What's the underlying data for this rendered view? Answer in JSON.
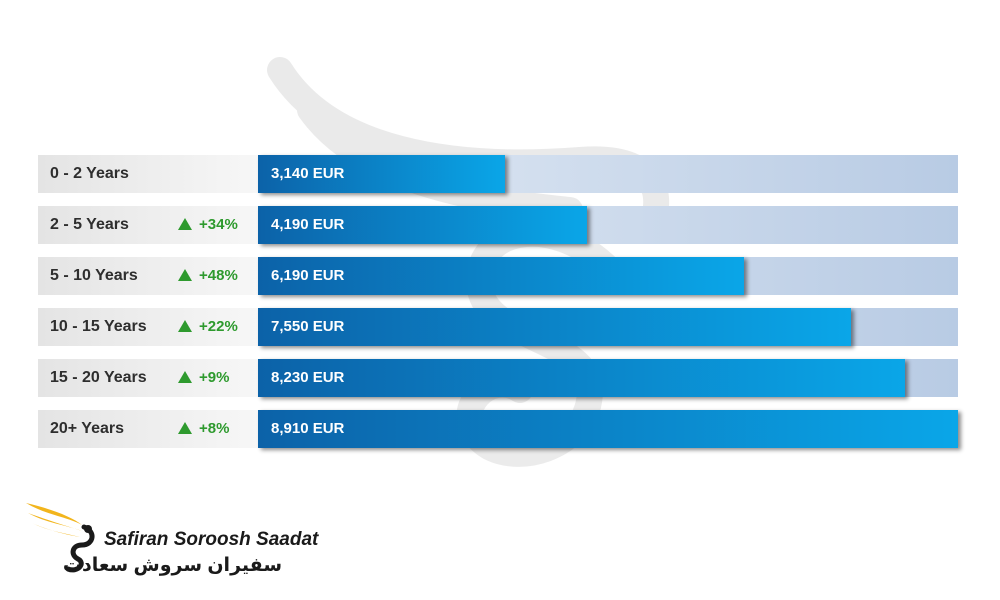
{
  "chart_data": {
    "type": "bar",
    "orientation": "horizontal",
    "unit": "EUR",
    "xlim": [
      0,
      8910
    ],
    "categories": [
      "0 - 2 Years",
      "2 - 5 Years",
      "5 - 10 Years",
      "10 - 15 Years",
      "15 - 20 Years",
      "20+ Years"
    ],
    "values": [
      3140,
      4190,
      6190,
      7550,
      8230,
      8910
    ],
    "value_labels": [
      "3,140 EUR",
      "4,190 EUR",
      "6,190 EUR",
      "7,550 EUR",
      "8,230 EUR",
      "8,910 EUR"
    ],
    "changes": [
      "",
      "+34%",
      "+48%",
      "+22%",
      "+9%",
      "+8%"
    ],
    "title": "",
    "xlabel": "",
    "ylabel": "",
    "grid": false,
    "legend": "none"
  },
  "brand": {
    "name_en": "Safiran Soroosh Saadat",
    "name_fa": "سفیران سروش سعادت",
    "icon": "golden-swan-logo"
  },
  "colors": {
    "bar_start": "#0c62a8",
    "bar_end": "#0aa6e8",
    "track": "#b8cbe4",
    "increase": "#2e9a2e",
    "logo_gold": "#f2b51c"
  }
}
